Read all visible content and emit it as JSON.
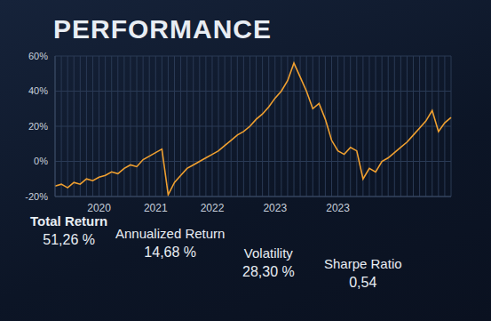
{
  "chart_data": {
    "type": "line",
    "title": "PERFORMANCE",
    "categories": [
      null,
      null,
      null,
      null,
      null,
      null,
      null,
      "2020",
      null,
      null,
      null,
      null,
      null,
      null,
      null,
      null,
      "2021",
      null,
      null,
      null,
      null,
      null,
      null,
      null,
      null,
      "2022",
      null,
      null,
      null,
      null,
      null,
      null,
      null,
      null,
      null,
      "2023",
      null,
      null,
      null,
      null,
      null,
      null,
      null,
      null,
      null,
      "2023",
      null,
      null,
      null,
      null,
      null,
      null,
      null,
      null,
      null,
      null,
      null,
      null,
      null,
      null,
      null,
      null,
      null,
      null
    ],
    "values": [
      -14,
      -13,
      -15,
      -12,
      -13,
      -10,
      -11,
      -9,
      -8,
      -6,
      -7,
      -4,
      -2,
      -3,
      1,
      3,
      5,
      7,
      -19,
      -12,
      -8,
      -4,
      -2,
      0,
      2,
      4,
      6,
      9,
      12,
      15,
      17,
      20,
      24,
      27,
      31,
      36,
      40,
      46,
      56,
      48,
      40,
      30,
      33,
      24,
      12,
      6,
      4,
      8,
      6,
      -10,
      -4,
      -6,
      0,
      2,
      5,
      8,
      11,
      15,
      19,
      23,
      29,
      17,
      22,
      25
    ],
    "color": "#f0a030",
    "ylim": [
      -20,
      60
    ],
    "yticks": [
      {
        "value": -20,
        "label": "-20%"
      },
      {
        "value": 0,
        "label": "0%"
      },
      {
        "value": 20,
        "label": "20%"
      },
      {
        "value": 40,
        "label": "40%"
      },
      {
        "value": 60,
        "label": "60%"
      }
    ],
    "grid": true
  },
  "metrics": [
    {
      "label": "Total Return",
      "value": "51,26 %"
    },
    {
      "label": "Annualized Return",
      "value": "14,68 %"
    },
    {
      "label": "Volatility",
      "value": "28,30 %"
    },
    {
      "label": "Sharpe Ratio",
      "value": "0,54"
    }
  ]
}
